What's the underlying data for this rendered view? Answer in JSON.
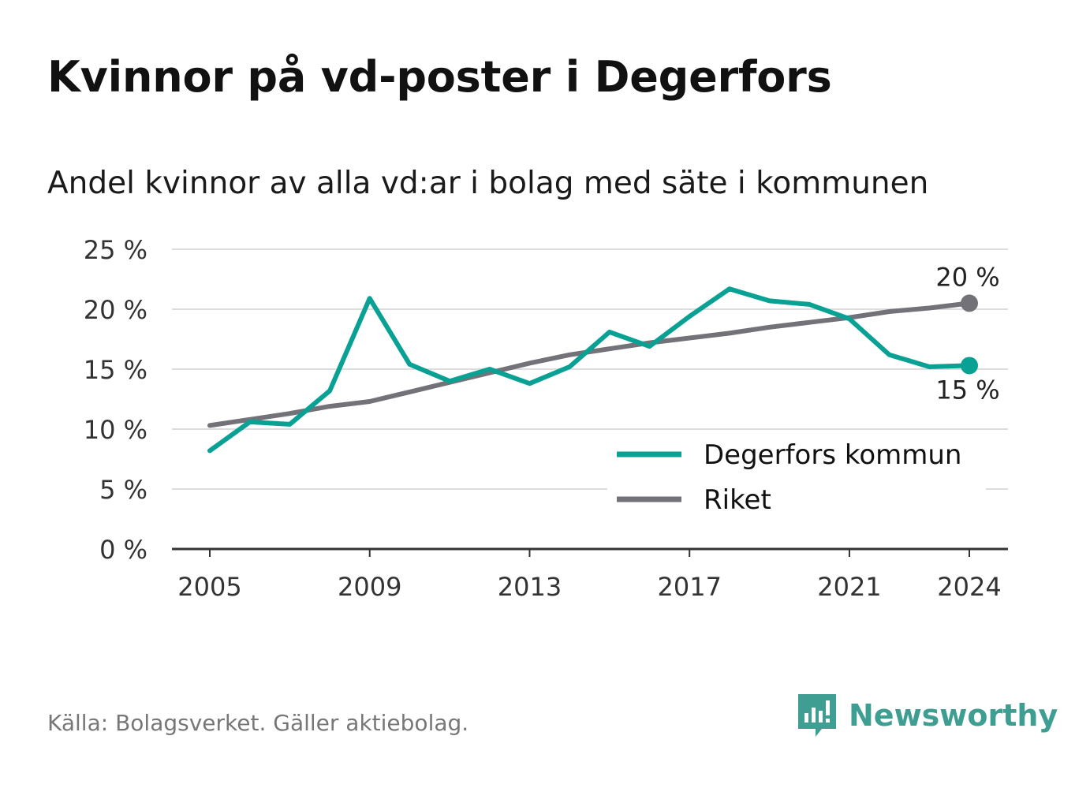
{
  "title": "Kvinnor på vd-poster i Degerfors",
  "subtitle": "Andel kvinnor av alla vd:ar i bolag med säte i kommunen",
  "source": "Källa: Bolagsverket. Gäller aktiebolag.",
  "brand": {
    "name": "Newsworthy",
    "icon": "newsworthy-logo-icon"
  },
  "colors": {
    "degerfors": "#0aa195",
    "riket": "#737278",
    "grid": "#dddddd",
    "axis": "#333333"
  },
  "chart_data": {
    "type": "line",
    "x": [
      2005,
      2006,
      2007,
      2008,
      2009,
      2010,
      2011,
      2012,
      2013,
      2014,
      2015,
      2016,
      2017,
      2018,
      2019,
      2020,
      2021,
      2022,
      2023,
      2024
    ],
    "xticks": [
      2005,
      2009,
      2013,
      2017,
      2021,
      2024
    ],
    "xtick_labels": [
      "2005",
      "2009",
      "2013",
      "2017",
      "2021",
      "2024"
    ],
    "ylim": [
      0,
      25
    ],
    "yticks": [
      0,
      5,
      10,
      15,
      20,
      25
    ],
    "ytick_labels": [
      "0 %",
      "5 %",
      "10 %",
      "15 %",
      "20 %",
      "25 %"
    ],
    "grid": true,
    "legend_position": "bottom-right",
    "series": [
      {
        "name": "Degerfors kommun",
        "color": "#0aa195",
        "values": [
          8.2,
          10.6,
          10.4,
          13.2,
          20.9,
          15.4,
          14.0,
          15.0,
          13.8,
          15.2,
          18.1,
          16.9,
          19.4,
          21.7,
          20.7,
          20.4,
          19.2,
          16.2,
          15.2,
          15.3
        ],
        "end_label": "15 %"
      },
      {
        "name": "Riket",
        "color": "#737278",
        "values": [
          10.3,
          10.8,
          11.3,
          11.9,
          12.3,
          13.1,
          13.9,
          14.7,
          15.5,
          16.2,
          16.7,
          17.2,
          17.6,
          18.0,
          18.5,
          18.9,
          19.3,
          19.8,
          20.1,
          20.5
        ],
        "end_label": "20 %"
      }
    ]
  }
}
